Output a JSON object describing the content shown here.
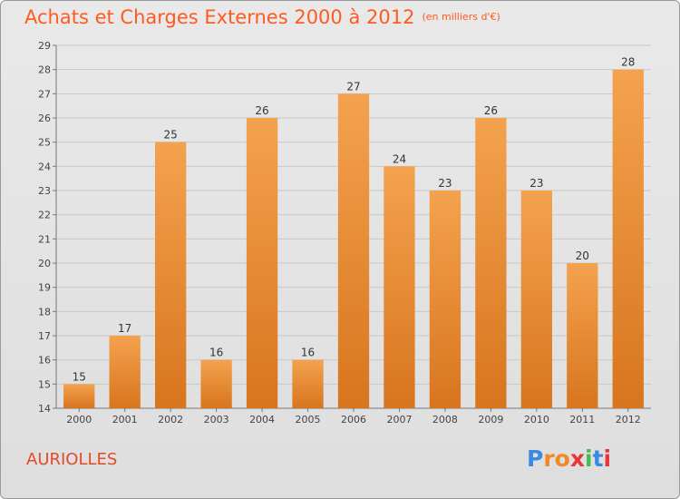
{
  "header": {
    "title": "Achats et Charges Externes 2000 à 2012",
    "unit": "(en milliers d'€)"
  },
  "footer": {
    "commune": "AURIOLLES",
    "logo_text": "Proxiti"
  },
  "colors": {
    "title": "#ff5a1f",
    "bar_top": "#f4a24e",
    "bar_bottom": "#d8751e",
    "logo_letters": [
      "#3a8be0",
      "#f08a24",
      "#f08a24",
      "#e8373a",
      "#3fbf4a",
      "#3a8be0",
      "#e8373a"
    ]
  },
  "chart_data": {
    "type": "bar",
    "categories": [
      "2000",
      "2001",
      "2002",
      "2003",
      "2004",
      "2005",
      "2006",
      "2007",
      "2008",
      "2009",
      "2010",
      "2011",
      "2012"
    ],
    "values": [
      15,
      17,
      25,
      16,
      26,
      16,
      27,
      24,
      23,
      26,
      23,
      20,
      28
    ],
    "ylim": [
      14,
      29
    ],
    "yticks": [
      14,
      15,
      16,
      17,
      18,
      19,
      20,
      21,
      22,
      23,
      24,
      25,
      26,
      27,
      28,
      29
    ],
    "grid": true,
    "data_labels": true
  }
}
